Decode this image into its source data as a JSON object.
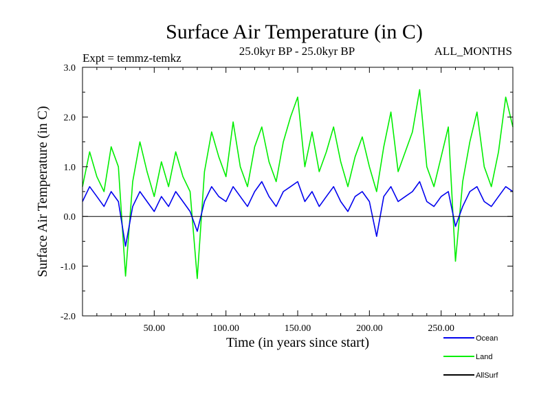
{
  "chart_data": {
    "type": "line",
    "title": "Surface Air Temperature (in C)",
    "subtitle_left": "Expt = temmz-temkz",
    "subtitle_center": "25.0kyr BP - 25.0kyr BP",
    "subtitle_right": "ALL_MONTHS",
    "xlabel": "Time (in years since start)",
    "ylabel": "Surface Air Temperature (in C)",
    "xlim": [
      0,
      300
    ],
    "ylim": [
      -2.0,
      3.0
    ],
    "x_ticks": [
      {
        "value": 50,
        "label": "50.00"
      },
      {
        "value": 100,
        "label": "100.00"
      },
      {
        "value": 150,
        "label": "150.00"
      },
      {
        "value": 200,
        "label": "200.00"
      },
      {
        "value": 250,
        "label": "250.00"
      }
    ],
    "y_ticks": [
      {
        "value": 3.0,
        "label": "3.0"
      },
      {
        "value": 2.0,
        "label": "2.0"
      },
      {
        "value": 1.0,
        "label": "1.0"
      },
      {
        "value": 0.0,
        "label": "0.0"
      },
      {
        "value": -1.0,
        "label": "-1.0"
      },
      {
        "value": -2.0,
        "label": "-2.0"
      }
    ],
    "x": [
      0,
      5,
      10,
      15,
      20,
      25,
      30,
      35,
      40,
      45,
      50,
      55,
      60,
      65,
      70,
      75,
      80,
      85,
      90,
      95,
      100,
      105,
      110,
      115,
      120,
      125,
      130,
      135,
      140,
      145,
      150,
      155,
      160,
      165,
      170,
      175,
      180,
      185,
      190,
      195,
      200,
      205,
      210,
      215,
      220,
      225,
      230,
      235,
      240,
      245,
      250,
      255,
      260,
      265,
      270,
      275,
      280,
      285,
      290,
      295,
      300
    ],
    "series": [
      {
        "name": "Land",
        "color": "#00ee00",
        "values": [
          0.6,
          1.3,
          0.8,
          0.5,
          1.4,
          1.0,
          -1.2,
          0.7,
          1.5,
          0.9,
          0.4,
          1.1,
          0.6,
          1.3,
          0.8,
          0.5,
          -1.25,
          0.9,
          1.7,
          1.2,
          0.8,
          1.9,
          1.0,
          0.6,
          1.4,
          1.8,
          1.1,
          0.7,
          1.5,
          2.0,
          2.4,
          1.0,
          1.7,
          0.9,
          1.3,
          1.8,
          1.1,
          0.6,
          1.2,
          1.6,
          1.0,
          0.5,
          1.4,
          2.1,
          0.9,
          1.3,
          1.7,
          2.55,
          1.0,
          0.6,
          1.2,
          1.8,
          -0.9,
          0.7,
          1.5,
          2.1,
          1.0,
          0.6,
          1.3,
          2.4,
          1.8
        ]
      },
      {
        "name": "Ocean",
        "color": "#0000ee",
        "values": [
          0.3,
          0.6,
          0.4,
          0.2,
          0.5,
          0.3,
          -0.6,
          0.2,
          0.5,
          0.3,
          0.1,
          0.4,
          0.2,
          0.5,
          0.3,
          0.1,
          -0.3,
          0.3,
          0.6,
          0.4,
          0.3,
          0.6,
          0.4,
          0.2,
          0.5,
          0.7,
          0.4,
          0.2,
          0.5,
          0.6,
          0.7,
          0.3,
          0.5,
          0.2,
          0.4,
          0.6,
          0.3,
          0.1,
          0.4,
          0.5,
          0.3,
          -0.4,
          0.4,
          0.6,
          0.3,
          0.4,
          0.5,
          0.7,
          0.3,
          0.2,
          0.4,
          0.5,
          -0.2,
          0.2,
          0.5,
          0.6,
          0.3,
          0.2,
          0.4,
          0.6,
          0.5
        ]
      },
      {
        "name": "AllSurf",
        "color": "#000000",
        "values": [
          0,
          0,
          0,
          0,
          0,
          0,
          0,
          0,
          0,
          0,
          0,
          0,
          0,
          0,
          0,
          0,
          0,
          0,
          0,
          0,
          0,
          0,
          0,
          0,
          0,
          0,
          0,
          0,
          0,
          0,
          0,
          0,
          0,
          0,
          0,
          0,
          0,
          0,
          0,
          0,
          0,
          0,
          0,
          0,
          0,
          0,
          0,
          0,
          0,
          0,
          0,
          0,
          0,
          0,
          0,
          0,
          0,
          0,
          0,
          0,
          0
        ]
      }
    ],
    "legend": {
      "placement": "bottom-right",
      "entries": [
        {
          "label": "Ocean",
          "color": "#0000ee"
        },
        {
          "label": "Land",
          "color": "#00ee00"
        },
        {
          "label": "AllSurf",
          "color": "#000000"
        }
      ]
    }
  }
}
